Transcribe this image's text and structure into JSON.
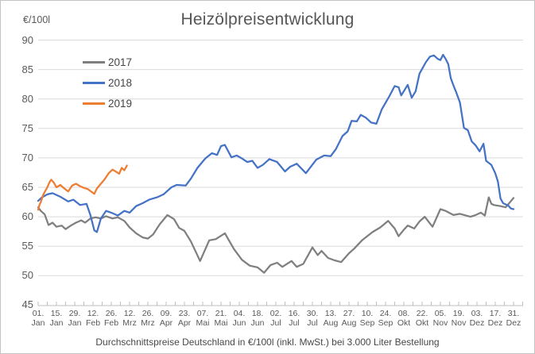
{
  "title": "Heizölpreisentwicklung",
  "y_axis_unit_label": "€/100l",
  "caption": "Durchschnittspreise Deutschland in €/100l (inkl. MwSt.) bei 3.000 Liter Bestellung",
  "colors": {
    "series_2017": "#7f7f7f",
    "series_2018": "#4472c4",
    "series_2019": "#ed7d31",
    "gridline": "#d9d9d9",
    "axis": "#bfbfbf",
    "axis_text": "#595959"
  },
  "legend": [
    {
      "label": "2017",
      "color": "#7f7f7f"
    },
    {
      "label": "2018",
      "color": "#4472c4"
    },
    {
      "label": "2019",
      "color": "#ed7d31"
    }
  ],
  "chart_data": {
    "type": "line",
    "title": "Heizölpreisentwicklung",
    "ylabel": "€/100l",
    "ylim": [
      45,
      90
    ],
    "grid": true,
    "legend_position": "top-left",
    "x_unit": "day_of_year",
    "ytick_values": [
      45,
      50,
      55,
      60,
      65,
      70,
      75,
      80,
      85,
      90
    ],
    "xticks": [
      {
        "day_of_year": 1,
        "day": "01.",
        "month": "Jan"
      },
      {
        "day_of_year": 15,
        "day": "15.",
        "month": "Jan"
      },
      {
        "day_of_year": 29,
        "day": "29.",
        "month": "Jan"
      },
      {
        "day_of_year": 43,
        "day": "12.",
        "month": "Feb"
      },
      {
        "day_of_year": 57,
        "day": "26.",
        "month": "Feb"
      },
      {
        "day_of_year": 71,
        "day": "12.",
        "month": "Mrz"
      },
      {
        "day_of_year": 85,
        "day": "26.",
        "month": "Mrz"
      },
      {
        "day_of_year": 99,
        "day": "09.",
        "month": "Apr"
      },
      {
        "day_of_year": 113,
        "day": "23.",
        "month": "Apr"
      },
      {
        "day_of_year": 127,
        "day": "07.",
        "month": "Mai"
      },
      {
        "day_of_year": 141,
        "day": "21.",
        "month": "Mai"
      },
      {
        "day_of_year": 155,
        "day": "04.",
        "month": "Jun"
      },
      {
        "day_of_year": 169,
        "day": "18.",
        "month": "Jun"
      },
      {
        "day_of_year": 183,
        "day": "02.",
        "month": "Jul"
      },
      {
        "day_of_year": 197,
        "day": "16.",
        "month": "Jul"
      },
      {
        "day_of_year": 211,
        "day": "30.",
        "month": "Jul"
      },
      {
        "day_of_year": 225,
        "day": "13.",
        "month": "Aug"
      },
      {
        "day_of_year": 239,
        "day": "27.",
        "month": "Aug"
      },
      {
        "day_of_year": 253,
        "day": "10.",
        "month": "Sep"
      },
      {
        "day_of_year": 267,
        "day": "24.",
        "month": "Sep"
      },
      {
        "day_of_year": 281,
        "day": "08.",
        "month": "Okt"
      },
      {
        "day_of_year": 295,
        "day": "22.",
        "month": "Okt"
      },
      {
        "day_of_year": 309,
        "day": "05.",
        "month": "Nov"
      },
      {
        "day_of_year": 323,
        "day": "19.",
        "month": "Nov"
      },
      {
        "day_of_year": 337,
        "day": "03.",
        "month": "Dez"
      },
      {
        "day_of_year": 351,
        "day": "17.",
        "month": "Dez"
      },
      {
        "day_of_year": 365,
        "day": "31.",
        "month": "Dez"
      }
    ],
    "series": [
      {
        "name": "2017",
        "color": "#7f7f7f",
        "points": [
          [
            1,
            61.6
          ],
          [
            3,
            61.0
          ],
          [
            6,
            60.4
          ],
          [
            9,
            58.6
          ],
          [
            12,
            59.0
          ],
          [
            15,
            58.3
          ],
          [
            19,
            58.5
          ],
          [
            22,
            57.9
          ],
          [
            26,
            58.5
          ],
          [
            30,
            59.0
          ],
          [
            34,
            59.4
          ],
          [
            37,
            59.0
          ],
          [
            41,
            59.7
          ],
          [
            45,
            59.9
          ],
          [
            49,
            59.7
          ],
          [
            53,
            60.1
          ],
          [
            58,
            59.7
          ],
          [
            62,
            59.9
          ],
          [
            67,
            59.3
          ],
          [
            71,
            58.2
          ],
          [
            76,
            57.2
          ],
          [
            81,
            56.5
          ],
          [
            85,
            56.3
          ],
          [
            89,
            57.0
          ],
          [
            94,
            58.7
          ],
          [
            100,
            60.3
          ],
          [
            105,
            59.6
          ],
          [
            109,
            58.1
          ],
          [
            113,
            57.6
          ],
          [
            118,
            55.8
          ],
          [
            125,
            52.5
          ],
          [
            129,
            54.5
          ],
          [
            132,
            56.0
          ],
          [
            137,
            56.2
          ],
          [
            144,
            57.2
          ],
          [
            151,
            54.5
          ],
          [
            157,
            52.7
          ],
          [
            163,
            51.7
          ],
          [
            169,
            51.4
          ],
          [
            174,
            50.5
          ],
          [
            179,
            51.8
          ],
          [
            184,
            52.2
          ],
          [
            188,
            51.5
          ],
          [
            195,
            52.5
          ],
          [
            199,
            51.5
          ],
          [
            204,
            52.0
          ],
          [
            211,
            54.8
          ],
          [
            215,
            53.5
          ],
          [
            218,
            54.2
          ],
          [
            223,
            53.0
          ],
          [
            228,
            52.6
          ],
          [
            233,
            52.3
          ],
          [
            239,
            53.8
          ],
          [
            243,
            54.6
          ],
          [
            249,
            56.0
          ],
          [
            257,
            57.4
          ],
          [
            263,
            58.2
          ],
          [
            269,
            59.3
          ],
          [
            274,
            58.0
          ],
          [
            277,
            56.7
          ],
          [
            281,
            57.8
          ],
          [
            284,
            58.5
          ],
          [
            289,
            58.0
          ],
          [
            293,
            59.2
          ],
          [
            297,
            60.0
          ],
          [
            303,
            58.3
          ],
          [
            309,
            61.3
          ],
          [
            313,
            61.0
          ],
          [
            319,
            60.3
          ],
          [
            324,
            60.5
          ],
          [
            332,
            60.0
          ],
          [
            336,
            60.3
          ],
          [
            340,
            60.7
          ],
          [
            343,
            60.2
          ],
          [
            346,
            63.3
          ],
          [
            348,
            62.2
          ],
          [
            350,
            62.0
          ],
          [
            355,
            61.8
          ],
          [
            359,
            61.6
          ],
          [
            362,
            62.4
          ],
          [
            365,
            63.2
          ]
        ]
      },
      {
        "name": "2018",
        "color": "#4472c4",
        "points": [
          [
            1,
            62.7
          ],
          [
            4,
            63.3
          ],
          [
            8,
            63.8
          ],
          [
            12,
            64.0
          ],
          [
            18,
            63.4
          ],
          [
            24,
            62.6
          ],
          [
            28,
            62.9
          ],
          [
            33,
            62.0
          ],
          [
            38,
            62.2
          ],
          [
            41,
            60.3
          ],
          [
            44,
            57.7
          ],
          [
            46,
            57.4
          ],
          [
            49,
            59.7
          ],
          [
            53,
            61.0
          ],
          [
            58,
            60.6
          ],
          [
            62,
            60.2
          ],
          [
            67,
            61.0
          ],
          [
            71,
            60.7
          ],
          [
            76,
            61.8
          ],
          [
            81,
            62.3
          ],
          [
            86,
            62.9
          ],
          [
            92,
            63.3
          ],
          [
            97,
            63.8
          ],
          [
            103,
            65.0
          ],
          [
            107,
            65.4
          ],
          [
            114,
            65.3
          ],
          [
            118,
            66.5
          ],
          [
            123,
            68.3
          ],
          [
            129,
            69.9
          ],
          [
            134,
            70.8
          ],
          [
            138,
            70.5
          ],
          [
            141,
            72.0
          ],
          [
            144,
            72.2
          ],
          [
            149,
            70.1
          ],
          [
            153,
            70.4
          ],
          [
            157,
            69.9
          ],
          [
            161,
            69.3
          ],
          [
            165,
            69.5
          ],
          [
            169,
            68.3
          ],
          [
            173,
            68.8
          ],
          [
            178,
            69.8
          ],
          [
            184,
            69.3
          ],
          [
            190,
            67.7
          ],
          [
            194,
            68.5
          ],
          [
            199,
            69.0
          ],
          [
            206,
            67.4
          ],
          [
            214,
            69.7
          ],
          [
            220,
            70.4
          ],
          [
            225,
            70.3
          ],
          [
            229,
            71.5
          ],
          [
            234,
            73.7
          ],
          [
            238,
            74.5
          ],
          [
            241,
            76.3
          ],
          [
            245,
            76.2
          ],
          [
            248,
            77.3
          ],
          [
            252,
            76.8
          ],
          [
            256,
            76.0
          ],
          [
            260,
            75.8
          ],
          [
            264,
            78.2
          ],
          [
            270,
            80.5
          ],
          [
            274,
            82.2
          ],
          [
            277,
            82.0
          ],
          [
            279,
            80.6
          ],
          [
            284,
            82.4
          ],
          [
            287,
            80.2
          ],
          [
            290,
            81.3
          ],
          [
            293,
            84.3
          ],
          [
            298,
            86.3
          ],
          [
            301,
            87.2
          ],
          [
            304,
            87.4
          ],
          [
            307,
            86.8
          ],
          [
            309,
            86.6
          ],
          [
            311,
            87.5
          ],
          [
            313,
            86.8
          ],
          [
            315,
            85.9
          ],
          [
            317,
            83.5
          ],
          [
            319,
            82.3
          ],
          [
            321,
            81.2
          ],
          [
            324,
            79.4
          ],
          [
            327,
            75.1
          ],
          [
            330,
            74.7
          ],
          [
            333,
            72.8
          ],
          [
            336,
            72.1
          ],
          [
            339,
            71.1
          ],
          [
            342,
            72.4
          ],
          [
            344,
            69.5
          ],
          [
            348,
            68.8
          ],
          [
            351,
            67.4
          ],
          [
            353,
            66.0
          ],
          [
            355,
            63.1
          ],
          [
            357,
            62.3
          ],
          [
            361,
            61.9
          ],
          [
            363,
            61.4
          ],
          [
            365,
            61.3
          ]
        ]
      },
      {
        "name": "2019",
        "color": "#ed7d31",
        "points": [
          [
            1,
            61.2
          ],
          [
            2,
            62.0
          ],
          [
            3,
            62.5
          ],
          [
            5,
            63.8
          ],
          [
            8,
            65.0
          ],
          [
            10,
            66.0
          ],
          [
            11,
            66.3
          ],
          [
            13,
            65.8
          ],
          [
            15,
            65.0
          ],
          [
            18,
            65.4
          ],
          [
            21,
            64.8
          ],
          [
            24,
            64.3
          ],
          [
            27,
            65.3
          ],
          [
            30,
            65.6
          ],
          [
            33,
            65.2
          ],
          [
            36,
            64.9
          ],
          [
            39,
            64.7
          ],
          [
            42,
            64.2
          ],
          [
            44,
            63.9
          ],
          [
            46,
            64.8
          ],
          [
            49,
            65.6
          ],
          [
            52,
            66.4
          ],
          [
            55,
            67.4
          ],
          [
            58,
            68.0
          ],
          [
            61,
            67.6
          ],
          [
            63,
            67.3
          ],
          [
            65,
            68.3
          ],
          [
            67,
            67.9
          ],
          [
            69,
            68.7
          ]
        ]
      }
    ]
  }
}
